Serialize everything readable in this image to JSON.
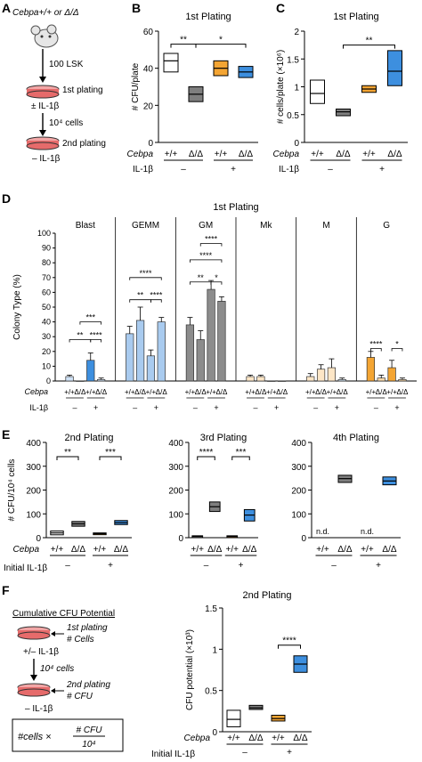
{
  "colors": {
    "white": "#ffffff",
    "grey": "#7f7f7f",
    "orange": "#f4a533",
    "blue": "#3d8fdf",
    "light_orange": "#fbd9a9",
    "light_blue": "#b9d6f2",
    "dish": "#e66b6b"
  },
  "panel_labels": {
    "A": "A",
    "B": "B",
    "C": "C",
    "D": "D",
    "E": "E",
    "F": "F"
  },
  "schematic_a": {
    "genotype": "Cebpa+/+ or Δ/Δ",
    "step1": "100 LSK",
    "plating1": "1st plating",
    "treat1": "± IL-1β",
    "step2": "10⁴ cells",
    "plating2": "2nd plating",
    "treat2": "– IL-1β"
  },
  "schematic_f": {
    "title": "Cumulative CFU Potential",
    "plating1": "1st plating",
    "cells": "# Cells",
    "treat1": "+/– IL-1β",
    "step": "10⁴ cells",
    "plating2": "2nd plating",
    "cfu": "# CFU",
    "treat2": "– IL-1β",
    "formula_left": "#cells ×",
    "formula_num": "# CFU",
    "formula_den": "10⁴"
  },
  "row_labels": {
    "cebpa": "Cebpa",
    "il1b": "IL-1β",
    "initial_il1b": "Initial IL-1β",
    "genos": [
      "+/+",
      "Δ/Δ",
      "+/+",
      "Δ/Δ"
    ],
    "minus": "–",
    "plus": "+"
  },
  "chart_data": [
    {
      "id": "B",
      "type": "box",
      "title": "1st Plating",
      "ylabel": "# CFU/plate",
      "ylim": [
        0,
        60
      ],
      "yticks": [
        0,
        20,
        40,
        60
      ],
      "boxes": [
        {
          "group": "+/+ –",
          "low": 38,
          "high": 48,
          "median": 44
        },
        {
          "group": "Δ/Δ –",
          "low": 22,
          "high": 30,
          "median": 26
        },
        {
          "group": "+/+ +",
          "low": 36,
          "high": 44,
          "median": 40
        },
        {
          "group": "Δ/Δ +",
          "low": 35,
          "high": 41,
          "median": 38
        }
      ],
      "sig": [
        {
          "from": 0,
          "to": 1,
          "label": "**",
          "y": 53
        },
        {
          "from": 1,
          "to": 3,
          "label": "*",
          "y": 53
        }
      ]
    },
    {
      "id": "C",
      "type": "box",
      "title": "1st Plating",
      "ylabel": "# cells/plate (×10⁶)",
      "ylim": [
        0,
        2.0
      ],
      "yticks": [
        0.0,
        0.5,
        1.0,
        1.5,
        2.0
      ],
      "boxes": [
        {
          "group": "+/+ –",
          "low": 0.7,
          "high": 1.12,
          "median": 0.88
        },
        {
          "group": "Δ/Δ –",
          "low": 0.48,
          "high": 0.6,
          "median": 0.55
        },
        {
          "group": "+/+ +",
          "low": 0.9,
          "high": 1.02,
          "median": 0.96
        },
        {
          "group": "Δ/Δ +",
          "low": 1.02,
          "high": 1.65,
          "median": 1.28
        }
      ],
      "sig": [
        {
          "from": 1,
          "to": 3,
          "label": "**",
          "y": 1.75
        }
      ]
    },
    {
      "id": "D",
      "type": "bar",
      "title": "1st Plating",
      "ylabel": "Colony Type (%)",
      "ylim": [
        0,
        100
      ],
      "yticks": [
        0,
        10,
        20,
        30,
        40,
        50,
        60,
        70,
        80,
        90,
        100
      ],
      "categories": [
        "Blast",
        "GEMM",
        "GM",
        "Mk",
        "M",
        "G"
      ],
      "values": [
        [
          3,
          0,
          14,
          1
        ],
        [
          32,
          41,
          17,
          40
        ],
        [
          38,
          28,
          62,
          54
        ],
        [
          3,
          3,
          0,
          0
        ],
        [
          3,
          8,
          9,
          1
        ],
        [
          16,
          2,
          9,
          1
        ]
      ],
      "errors": [
        [
          1,
          0,
          5,
          1
        ],
        [
          5,
          9,
          4,
          3
        ],
        [
          5,
          6,
          6,
          3
        ],
        [
          1,
          1,
          0,
          0
        ],
        [
          2,
          3,
          6,
          1
        ],
        [
          4,
          2,
          5,
          1
        ]
      ],
      "sig": [
        {
          "cat": 0,
          "from": 0,
          "to": 2,
          "label": "**",
          "y": 28
        },
        {
          "cat": 0,
          "from": 2,
          "to": 3,
          "label": "****",
          "y": 28
        },
        {
          "cat": 0,
          "from": 1,
          "to": 3,
          "label": "***",
          "y": 40
        },
        {
          "cat": 1,
          "from": 0,
          "to": 2,
          "label": "**",
          "y": 55
        },
        {
          "cat": 1,
          "from": 2,
          "to": 3,
          "label": "****",
          "y": 55
        },
        {
          "cat": 1,
          "from": 0,
          "to": 3,
          "label": "****",
          "y": 70
        },
        {
          "cat": 2,
          "from": 0,
          "to": 2,
          "label": "**",
          "y": 67
        },
        {
          "cat": 2,
          "from": 2,
          "to": 3,
          "label": "*",
          "y": 67
        },
        {
          "cat": 2,
          "from": 0,
          "to": 3,
          "label": "****",
          "y": 82
        },
        {
          "cat": 2,
          "from": 1,
          "to": 3,
          "label": "****",
          "y": 93
        },
        {
          "cat": 5,
          "from": 0,
          "to": 1,
          "label": "****",
          "y": 22
        },
        {
          "cat": 5,
          "from": 2,
          "to": 3,
          "label": "*",
          "y": 22
        }
      ]
    },
    {
      "id": "E1",
      "type": "box",
      "title": "2nd Plating",
      "ylabel": "# CFU/10⁴ cells",
      "ylim": [
        0,
        400
      ],
      "yticks": [
        0,
        100,
        200,
        300,
        400
      ],
      "boxes": [
        {
          "group": "+/+ –",
          "low": 12,
          "high": 28,
          "median": 20
        },
        {
          "group": "Δ/Δ –",
          "low": 48,
          "high": 68,
          "median": 58
        },
        {
          "group": "+/+ +",
          "low": 14,
          "high": 20,
          "median": 17
        },
        {
          "group": "Δ/Δ +",
          "low": 55,
          "high": 72,
          "median": 63
        }
      ],
      "sig": [
        {
          "from": 0,
          "to": 1,
          "label": "**",
          "y": 340
        },
        {
          "from": 2,
          "to": 3,
          "label": "***",
          "y": 340
        }
      ]
    },
    {
      "id": "E2",
      "type": "box",
      "title": "3rd Plating",
      "ylim": [
        0,
        400
      ],
      "yticks": [
        0,
        100,
        200,
        300,
        400
      ],
      "boxes": [
        {
          "group": "+/+ –",
          "low": 3,
          "high": 8,
          "median": 5
        },
        {
          "group": "Δ/Δ –",
          "low": 110,
          "high": 150,
          "median": 130
        },
        {
          "group": "+/+ +",
          "low": 3,
          "high": 8,
          "median": 5
        },
        {
          "group": "Δ/Δ +",
          "low": 70,
          "high": 118,
          "median": 95
        }
      ],
      "sig": [
        {
          "from": 0,
          "to": 1,
          "label": "****",
          "y": 340
        },
        {
          "from": 2,
          "to": 3,
          "label": "***",
          "y": 340
        }
      ]
    },
    {
      "id": "E3",
      "type": "box",
      "title": "4th Plating",
      "ylim": [
        0,
        400
      ],
      "yticks": [
        0,
        100,
        200,
        300,
        400
      ],
      "boxes": [
        {
          "group": "+/+ –",
          "nd": true
        },
        {
          "group": "Δ/Δ –",
          "low": 232,
          "high": 262,
          "median": 248
        },
        {
          "group": "+/+ +",
          "nd": true
        },
        {
          "group": "Δ/Δ +",
          "low": 222,
          "high": 255,
          "median": 238
        }
      ],
      "nd_label": "n.d."
    },
    {
      "id": "F",
      "type": "box",
      "title": "2nd Plating",
      "ylabel": "CFU potential (×10³)",
      "ylim": [
        0,
        1.5
      ],
      "yticks": [
        0.0,
        0.5,
        1.0,
        1.5
      ],
      "boxes": [
        {
          "group": "+/+ –",
          "low": 0.06,
          "high": 0.26,
          "median": 0.15
        },
        {
          "group": "Δ/Δ –",
          "low": 0.27,
          "high": 0.32,
          "median": 0.29
        },
        {
          "group": "+/+ +",
          "low": 0.13,
          "high": 0.2,
          "median": 0.16
        },
        {
          "group": "Δ/Δ +",
          "low": 0.72,
          "high": 0.92,
          "median": 0.82
        }
      ],
      "sig": [
        {
          "from": 2,
          "to": 3,
          "label": "****",
          "y": 1.05
        }
      ]
    }
  ]
}
